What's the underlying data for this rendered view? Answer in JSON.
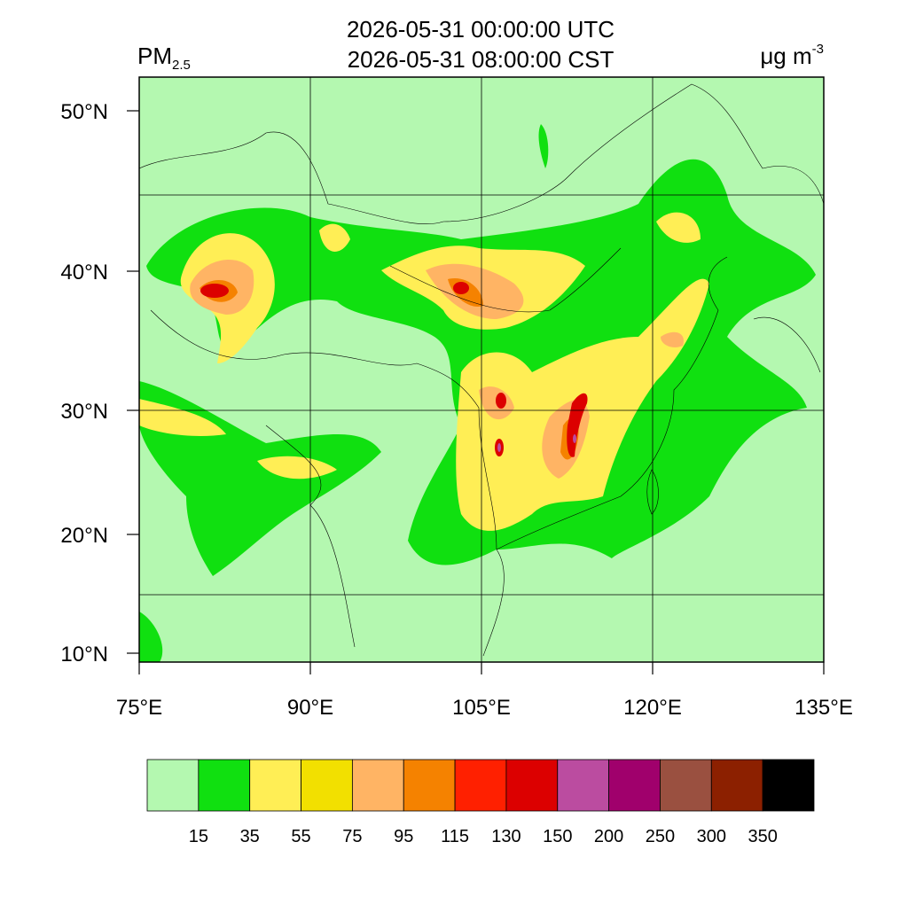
{
  "header": {
    "title_lines": [
      "2026-05-31 00:00:00 UTC",
      "2026-05-31 08:00:00 CST"
    ],
    "variable": {
      "base": "PM",
      "subscript": "2.5"
    },
    "units": {
      "base": "μg m",
      "superscript": "-3"
    }
  },
  "map": {
    "lat_labels": [
      "50°N",
      "40°N",
      "30°N",
      "20°N",
      "10°N"
    ],
    "lon_labels": [
      "75°E",
      "90°E",
      "105°E",
      "120°E",
      "135°E"
    ]
  },
  "colorbar": {
    "colors": [
      "#b4f8b0",
      "#10e010",
      "#ffee55",
      "#f2e000",
      "#ffb464",
      "#f58200",
      "#ff2000",
      "#dc0000",
      "#bb4ca0",
      "#a0006c",
      "#9a5040",
      "#8c2000",
      "#000000"
    ],
    "levels": [
      "15",
      "35",
      "55",
      "75",
      "95",
      "115",
      "130",
      "150",
      "200",
      "250",
      "300",
      "350"
    ]
  }
}
